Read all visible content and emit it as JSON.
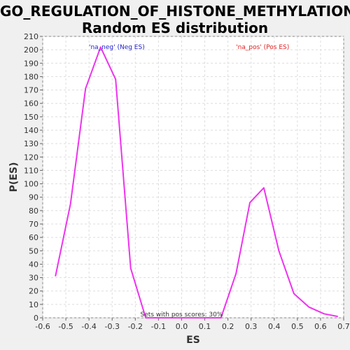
{
  "chart_data": {
    "type": "line",
    "title_line_1": "GO_REGULATION_OF_HISTONE_METHYLATION:",
    "title_line_2": "Random ES distribution",
    "xlabel": "ES",
    "ylabel": "P(ES)",
    "xlim": [
      -0.6,
      0.7
    ],
    "ylim": [
      0,
      210
    ],
    "x_ticks": [
      -0.6,
      -0.5,
      -0.4,
      -0.3,
      -0.2,
      -0.1,
      0.0,
      0.1,
      0.2,
      0.3,
      0.4,
      0.5,
      0.6,
      0.7
    ],
    "y_ticks": [
      0,
      10,
      20,
      30,
      40,
      50,
      60,
      70,
      80,
      90,
      100,
      110,
      120,
      130,
      140,
      150,
      160,
      170,
      180,
      190,
      200,
      210
    ],
    "grid": true,
    "series": [
      {
        "color": "#ee33ee",
        "x": [
          -0.545,
          -0.48,
          -0.415,
          -0.35,
          -0.285,
          -0.22,
          -0.155,
          -0.09,
          -0.025,
          0.04,
          0.105,
          0.17,
          0.235,
          0.295,
          0.355,
          0.42,
          0.485,
          0.55,
          0.615,
          0.675
        ],
        "y": [
          31,
          85,
          171,
          202,
          178,
          37,
          0,
          0,
          0,
          0,
          0,
          0,
          33,
          86,
          97,
          50,
          18,
          8,
          3,
          1
        ]
      }
    ],
    "annotations": {
      "neg_label": "'na_neg' (Neg ES)",
      "neg_color": "#2222cc",
      "pos_label": "'na_pos' (Pos ES)",
      "pos_color": "#dd2222",
      "bottom_text": "Sets with pos scores: 30%"
    }
  }
}
